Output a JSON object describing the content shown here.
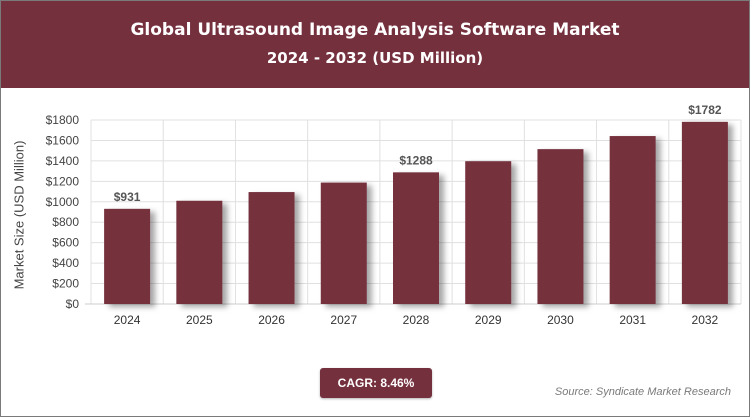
{
  "header": {
    "title": "Global Ultrasound Image Analysis Software Market",
    "subtitle": "2024 - 2032 (USD Million)"
  },
  "colors": {
    "header_bg": "#75303e",
    "bar": "#75303e",
    "grid": "#e0e0e0",
    "label": "#555555"
  },
  "chart_data": {
    "type": "bar",
    "categories": [
      "2024",
      "2025",
      "2026",
      "2027",
      "2028",
      "2029",
      "2030",
      "2031",
      "2032"
    ],
    "series": [
      {
        "values": [
          931,
          1010,
          1095,
          1188,
          1288,
          1397,
          1515,
          1643,
          1782
        ]
      }
    ],
    "data_labels": [
      {
        "index": 0,
        "text": "$931"
      },
      {
        "index": 4,
        "text": "$1288"
      },
      {
        "index": 8,
        "text": "$1782"
      }
    ],
    "ylabel": "Market Size (USD Million)",
    "yticks": [
      "$0",
      "$200",
      "$400",
      "$600",
      "$800",
      "$1000",
      "$1200",
      "$1400",
      "$1600",
      "$1800"
    ],
    "ylim": [
      0,
      1800
    ],
    "grid": true,
    "legend": "none"
  },
  "footer": {
    "cagr": "CAGR: 8.46%",
    "source": "Source: Syndicate Market Research"
  }
}
